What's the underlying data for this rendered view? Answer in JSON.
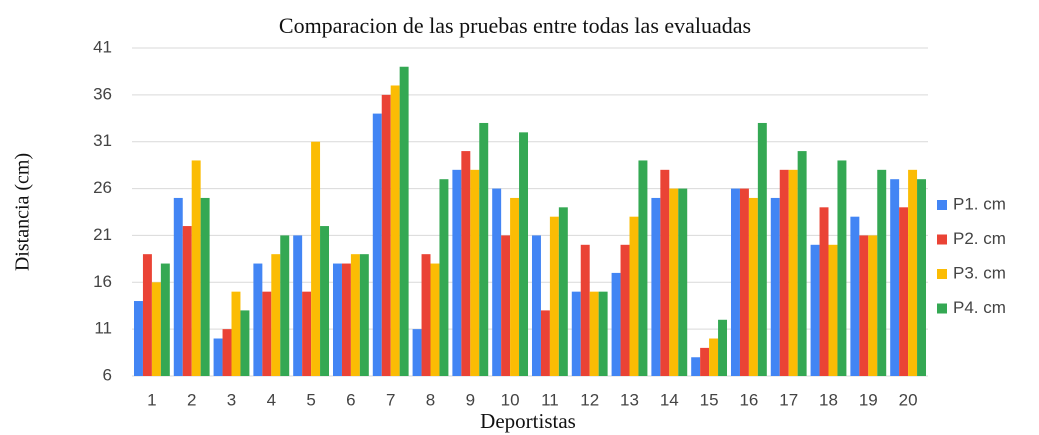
{
  "chart_data": {
    "type": "bar",
    "title": "Comparacion  de las pruebas  entre  todas las evaluadas",
    "x_label": "Deportistas",
    "y_label": "Distancia  (cm)",
    "categories": [
      "1",
      "2",
      "3",
      "4",
      "5",
      "6",
      "7",
      "8",
      "9",
      "10",
      "11",
      "12",
      "13",
      "14",
      "15",
      "16",
      "17",
      "18",
      "19",
      "20"
    ],
    "series": [
      {
        "name": "P1. cm",
        "color": "#4285f4",
        "values": [
          14,
          25,
          10,
          18,
          21,
          18,
          34,
          11,
          28,
          26,
          21,
          15,
          17,
          25,
          8,
          26,
          25,
          20,
          23,
          27
        ]
      },
      {
        "name": "P2. cm",
        "color": "#ea4335",
        "values": [
          19,
          22,
          11,
          15,
          15,
          18,
          36,
          19,
          30,
          21,
          13,
          20,
          20,
          28,
          9,
          26,
          28,
          24,
          21,
          24
        ]
      },
      {
        "name": "P3. cm",
        "color": "#fbbc04",
        "values": [
          16,
          29,
          15,
          19,
          31,
          19,
          37,
          18,
          28,
          25,
          23,
          15,
          23,
          26,
          10,
          25,
          28,
          20,
          21,
          28
        ]
      },
      {
        "name": "P4. cm",
        "color": "#34a853",
        "values": [
          18,
          25,
          13,
          21,
          22,
          19,
          39,
          27,
          33,
          32,
          24,
          15,
          29,
          26,
          12,
          33,
          30,
          29,
          28,
          27
        ]
      }
    ],
    "ylim": [
      6,
      41
    ],
    "yticks": [
      6,
      11,
      16,
      21,
      26,
      31,
      36,
      41
    ],
    "grid": true,
    "legend": "right"
  }
}
